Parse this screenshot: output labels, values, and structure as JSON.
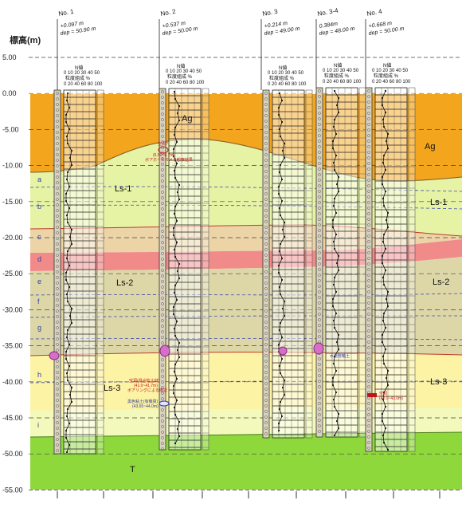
{
  "axis": {
    "title": "標高(m)",
    "ticks": [
      "5.00",
      "0.00",
      "-5.00",
      "-10.00",
      "-15.00",
      "-20.00",
      "-25.00",
      "-30.00",
      "-35.00",
      "-40.00",
      "-45.00",
      "-50.00",
      "-55.00"
    ]
  },
  "layers": {
    "ag_left": "Ag",
    "ag_right": "Ag",
    "ls1_left": "Ls-1",
    "ls1_right": "Ls-1",
    "ls2_left": "Ls-2",
    "ls2_right": "Ls-2",
    "ls3_left": "Ls-3",
    "ls3_right": "Ls-3",
    "t": "T"
  },
  "sublayers": [
    "a",
    "b",
    "c",
    "d",
    "e",
    "f",
    "g",
    "h",
    "i"
  ],
  "boreholes": [
    {
      "name": "No. 1",
      "elev": "+0.097 m",
      "dep": "dep = 50.90 m"
    },
    {
      "name": "No. 2",
      "elev": "+0.537 m",
      "dep": "dep = 50.00 m"
    },
    {
      "name": "No. 3",
      "elev": "+0.214 m",
      "dep": "dep = 49.00 m"
    },
    {
      "name": "No. 3-4",
      "elev": "0.384m",
      "dep": "dep = 48.00 m"
    },
    {
      "name": "No. 4",
      "elev": "+0.668 m",
      "dep": "dep = 50.00 m"
    }
  ],
  "log_header": {
    "nvalue": "N値",
    "scale": "0 10 20 30 40 50",
    "grain": "粒度組成 %",
    "grain_scale": "0 20 40 60 80 100"
  },
  "notes": {
    "n2a": "空洞?",
    "n2b": "(6.50~8.7m)",
    "n2c": "ボアホールカメラ観察結果",
    "n2d": "空洞(混合粒土材)",
    "n2e": "(41.0~41.7m)",
    "n2f": "ボアリングによる確認",
    "n2g": "黒色粘土(有機質)",
    "n2h": "(43.65~44.0m)",
    "n34": "水道管軸土",
    "n4a": "空洞",
    "n4b": "(42.0~43.0m)"
  },
  "colors": {
    "ag": "#f2a51d",
    "ls1": "#e7f3a4",
    "c": "#ecd4a6",
    "d": "#f08b8a",
    "ls2": "#ddd7a8",
    "ls3": "#fdf3a5",
    "i": "#f3f9ba",
    "t": "#8fd83b"
  }
}
